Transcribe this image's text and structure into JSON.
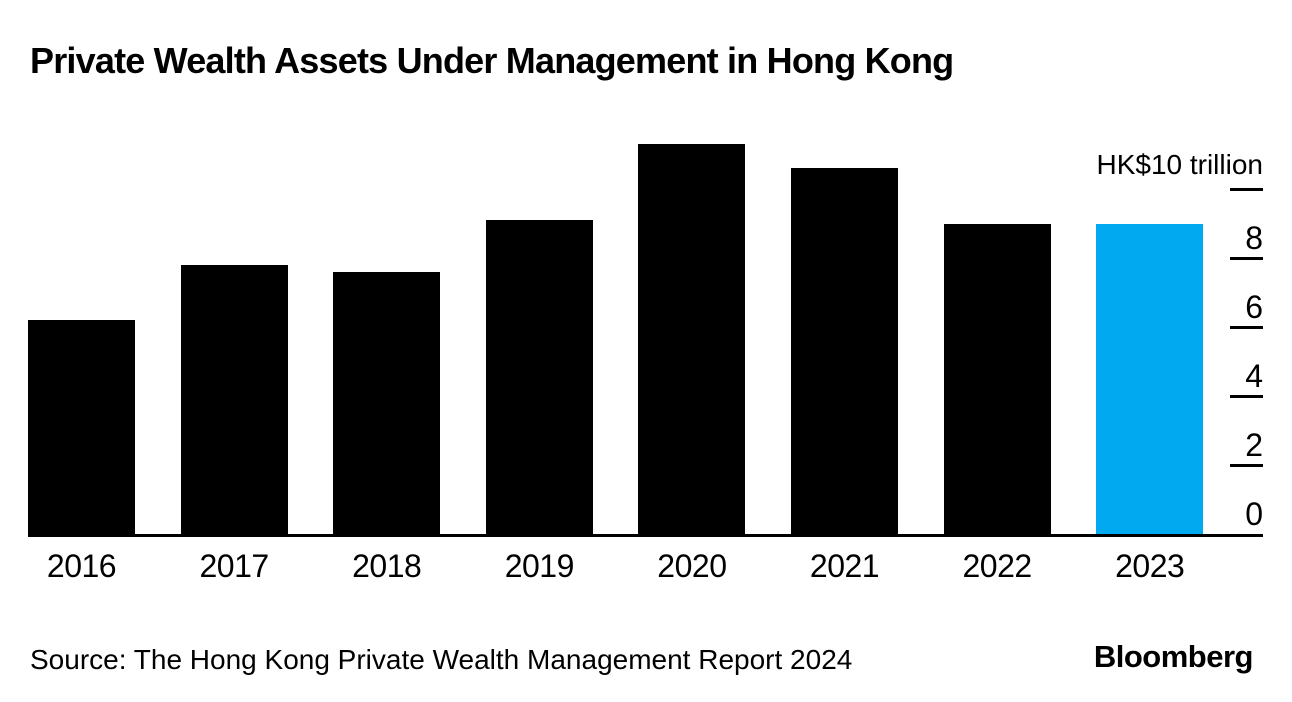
{
  "header": {
    "title": "Private Wealth Assets Under Management in Hong Kong"
  },
  "footer": {
    "source": "Source: The Hong Kong Private Wealth Management Report 2024",
    "logo": "Bloomberg"
  },
  "colors": {
    "bar": "#000000",
    "highlight": "#00a9f0",
    "axis": "#000000",
    "text": "#000000",
    "background": "#ffffff"
  },
  "chart_data": {
    "type": "bar",
    "title": "Private Wealth Assets Under Management in Hong Kong",
    "categories": [
      "2016",
      "2017",
      "2018",
      "2019",
      "2020",
      "2021",
      "2022",
      "2023"
    ],
    "values": [
      6.2,
      7.8,
      7.6,
      9.1,
      11.3,
      10.6,
      9.0,
      9.0
    ],
    "highlight_category": "2023",
    "highlight_index": 7,
    "unit_label": "HK$10 trillion",
    "yticks": [
      0,
      2,
      4,
      6,
      8,
      10
    ],
    "ytick_labels": [
      "0",
      "2",
      "4",
      "6",
      "8",
      "HK$10 trillion"
    ],
    "ylim": [
      0,
      11.5
    ],
    "yaxis_side": "right",
    "grid": false,
    "legend": false,
    "xlabel": "",
    "ylabel": "HK$ trillion",
    "source": "Source: The Hong Kong Private Wealth Management Report 2024"
  }
}
